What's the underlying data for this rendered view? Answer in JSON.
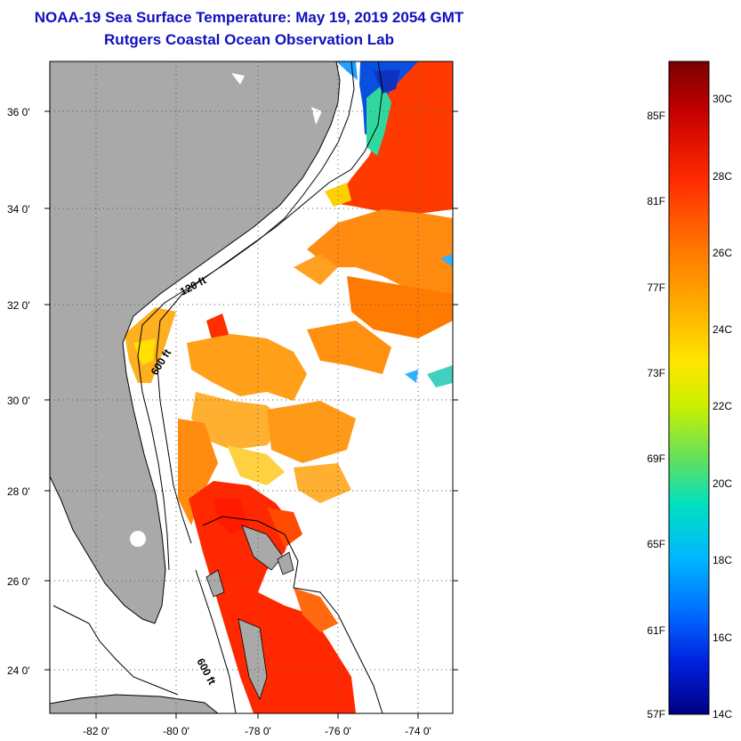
{
  "header": {
    "title": "NOAA-19 Sea Surface Temperature:  May 19, 2019 2054 GMT",
    "subtitle": "Rutgers Coastal Ocean Observation Lab"
  },
  "map": {
    "lat_labels": [
      "36 0'",
      "34 0'",
      "32 0'",
      "30 0'",
      "28 0'",
      "26 0'",
      "24 0'"
    ],
    "lon_labels": [
      "-82 0'",
      "-80 0'",
      "-78 0'",
      "-76 0'",
      "-74 0'"
    ],
    "contour_labels": [
      "120 ft",
      "600 ft",
      "600 ft"
    ],
    "colors": {
      "land": "#a9a9a9",
      "ocean": "#ffffff",
      "grid": "#555555"
    }
  },
  "colorbar": {
    "fahrenheit_labels": [
      "85F",
      "81F",
      "77F",
      "73F",
      "69F",
      "65F",
      "61F",
      "57F"
    ],
    "celsius_labels": [
      "30C",
      "28C",
      "26C",
      "24C",
      "22C",
      "20C",
      "18C",
      "16C",
      "14C"
    ],
    "palette": [
      "#7a0000",
      "#c80000",
      "#ff2a00",
      "#ff7a00",
      "#ffb000",
      "#ffe600",
      "#c8f000",
      "#60e060",
      "#00e0c0",
      "#00b8ff",
      "#0070ff",
      "#0020e0",
      "#000080"
    ]
  }
}
